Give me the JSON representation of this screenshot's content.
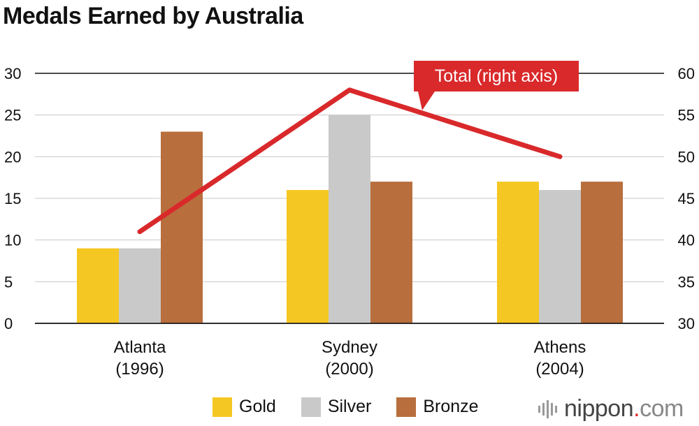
{
  "title": "Medals Earned by Australia",
  "chart_data": {
    "type": "bar",
    "title": "Medals Earned by Australia",
    "categories": [
      [
        "Atlanta",
        "(1996)"
      ],
      [
        "Sydney",
        "(2000)"
      ],
      [
        "Athens",
        "(2004)"
      ]
    ],
    "series": [
      {
        "name": "Gold",
        "values": [
          9,
          16,
          17
        ],
        "color": "#f5c722"
      },
      {
        "name": "Silver",
        "values": [
          9,
          25,
          16
        ],
        "color": "#c9c9c9"
      },
      {
        "name": "Bronze",
        "values": [
          23,
          17,
          17
        ],
        "color": "#b86e3d"
      }
    ],
    "line_series": {
      "name": "Total (right axis)",
      "values": [
        41,
        58,
        50
      ],
      "color": "#d9292b",
      "axis": "right"
    },
    "left_axis": {
      "range": [
        0,
        30
      ],
      "ticks": [
        "0",
        "5",
        "10",
        "15",
        "20",
        "25",
        "30"
      ]
    },
    "right_axis": {
      "range": [
        30,
        60
      ],
      "ticks": [
        "30",
        "35",
        "40",
        "45",
        "50",
        "55",
        "60"
      ]
    },
    "annotation": "Total (right axis)",
    "legend_position": "bottom"
  },
  "legend": [
    {
      "label": "Gold",
      "color": "#f5c722"
    },
    {
      "label": "Silver",
      "color": "#c9c9c9"
    },
    {
      "label": "Bronze",
      "color": "#b86e3d"
    }
  ],
  "brand": {
    "name": "nippon",
    "dot": ".",
    "suffix": "com"
  }
}
